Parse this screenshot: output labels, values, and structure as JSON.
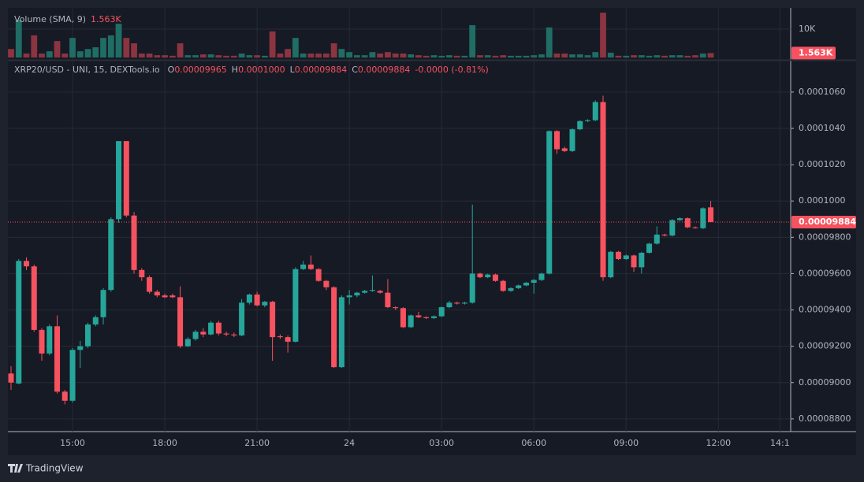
{
  "chart_data": {
    "type": "candlestick",
    "title": "XRP20/USD - UNI, 15, DEXTools.io",
    "header_fields": [
      {
        "key": "O",
        "text": "0.00009965"
      },
      {
        "key": "H",
        "text": "0.0001000"
      },
      {
        "key": "L",
        "text": "0.00009884"
      },
      {
        "key": "C",
        "text": "0.00009884"
      }
    ],
    "change": "-0.0000 (-0.81%)",
    "up_color": "#26a69a",
    "down_color": "#f7525f",
    "xlim": [
      -0.41,
      101.4
    ],
    "xticks": [
      {
        "value": 8,
        "label": "15:00"
      },
      {
        "value": 20,
        "label": "18:00"
      },
      {
        "value": 32,
        "label": "21:00"
      },
      {
        "value": 44,
        "label": "24"
      },
      {
        "value": 56,
        "label": "03:00"
      },
      {
        "value": 68,
        "label": "06:00"
      },
      {
        "value": 80,
        "label": "09:00"
      },
      {
        "value": 92,
        "label": "12:00"
      },
      {
        "value": 100,
        "label": "14:1"
      }
    ],
    "ylim": [
      8.73e-05,
      0.00010695
    ],
    "yticks": [
      {
        "value": 0.000106,
        "label": "0.0001060"
      },
      {
        "value": 0.000104,
        "label": "0.0001040"
      },
      {
        "value": 0.000102,
        "label": "0.0001020"
      },
      {
        "value": 0.0001,
        "label": "0.0001000"
      },
      {
        "value": 9.8e-05,
        "label": "0.00009800"
      },
      {
        "value": 9.6e-05,
        "label": "0.00009600"
      },
      {
        "value": 9.4e-05,
        "label": "0.00009400"
      },
      {
        "value": 9.2e-05,
        "label": "0.00009200"
      },
      {
        "value": 9e-05,
        "label": "0.00009000"
      },
      {
        "value": 8.8e-05,
        "label": "0.00008800"
      }
    ],
    "grid": true,
    "last_price_label": "0.00009884",
    "open": [
      9.05e-05,
      8.995e-05,
      9.67e-05,
      9.64e-05,
      9.29e-05,
      9.16e-05,
      9.31e-05,
      8.95e-05,
      8.9e-05,
      9.18e-05,
      9.2e-05,
      9.32e-05,
      9.36e-05,
      9.51e-05,
      9.9e-05,
      0.0001033,
      9.92e-05,
      9.62e-05,
      9.58e-05,
      9.5e-05,
      9.48e-05,
      9.48e-05,
      9.47e-05,
      9.2e-05,
      9.24e-05,
      9.28e-05,
      9.265e-05,
      9.33e-05,
      9.27e-05,
      9.265e-05,
      9.26e-05,
      9.44e-05,
      9.485e-05,
      9.425e-05,
      9.445e-05,
      9.255e-05,
      9.25e-05,
      9.225e-05,
      9.625e-05,
      9.65e-05,
      9.625e-05,
      9.56e-05,
      9.525e-05,
      9.085e-05,
      9.47e-05,
      9.48e-05,
      9.495e-05,
      9.505e-05,
      9.505e-05,
      9.495e-05,
      9.415e-05,
      9.41e-05,
      9.305e-05,
      9.37e-05,
      9.36e-05,
      9.355e-05,
      9.365e-05,
      9.415e-05,
      9.44e-05,
      9.435e-05,
      9.44e-05,
      9.6e-05,
      9.58e-05,
      9.595e-05,
      9.56e-05,
      9.505e-05,
      9.52e-05,
      9.535e-05,
      9.55e-05,
      9.565e-05,
      9.6e-05,
      0.00010385,
      0.0001029,
      0.00010275,
      0.00010395,
      0.0001044,
      0.00010445,
      0.00010545,
      9.58e-05,
      9.72e-05,
      9.68e-05,
      9.7e-05,
      9.635e-05,
      9.715e-05,
      9.765e-05,
      9.815e-05,
      9.81e-05,
      9.895e-05,
      9.905e-05,
      9.855e-05,
      9.85e-05,
      9.965e-05
    ],
    "high": [
      9.09e-05,
      9.68e-05,
      9.69e-05,
      9.65e-05,
      9.3e-05,
      9.32e-05,
      9.37e-05,
      8.96e-05,
      9.19e-05,
      9.23e-05,
      9.33e-05,
      9.37e-05,
      9.52e-05,
      9.91e-05,
      0.0001033,
      0.0001033,
      9.94e-05,
      9.63e-05,
      9.59e-05,
      9.51e-05,
      9.49e-05,
      9.49e-05,
      9.53e-05,
      9.25e-05,
      9.29e-05,
      9.3e-05,
      9.34e-05,
      9.34e-05,
      9.28e-05,
      9.275e-05,
      9.46e-05,
      9.49e-05,
      9.5e-05,
      9.45e-05,
      9.45e-05,
      9.265e-05,
      9.26e-05,
      9.635e-05,
      9.67e-05,
      9.7e-05,
      9.63e-05,
      9.565e-05,
      9.53e-05,
      9.48e-05,
      9.51e-05,
      9.5e-05,
      9.51e-05,
      9.59e-05,
      9.51e-05,
      9.57e-05,
      9.42e-05,
      9.415e-05,
      9.375e-05,
      9.39e-05,
      9.365e-05,
      9.37e-05,
      9.42e-05,
      9.45e-05,
      9.445e-05,
      9.445e-05,
      9.98e-05,
      9.605e-05,
      9.6e-05,
      9.6e-05,
      9.565e-05,
      9.525e-05,
      9.54e-05,
      9.555e-05,
      9.57e-05,
      9.605e-05,
      0.0001039,
      0.0001039,
      0.000103,
      0.000104,
      0.00010445,
      0.0001045,
      0.00010555,
      0.0001058,
      9.725e-05,
      9.725e-05,
      9.705e-05,
      9.705e-05,
      9.72e-05,
      9.77e-05,
      9.86e-05,
      9.82e-05,
      9.9e-05,
      9.91e-05,
      9.91e-05,
      9.86e-05,
      9.965e-05,
      0.0001
    ],
    "low": [
      8.96e-05,
      8.99e-05,
      9.62e-05,
      9.28e-05,
      9.12e-05,
      9.15e-05,
      8.94e-05,
      8.88e-05,
      8.89e-05,
      9.08e-05,
      9.19e-05,
      9.31e-05,
      9.32e-05,
      9.5e-05,
      9.88e-05,
      9.91e-05,
      9.6e-05,
      9.56e-05,
      9.49e-05,
      9.47e-05,
      9.465e-05,
      9.465e-05,
      9.19e-05,
      9.195e-05,
      9.23e-05,
      9.25e-05,
      9.26e-05,
      9.26e-05,
      9.255e-05,
      9.25e-05,
      9.255e-05,
      9.43e-05,
      9.42e-05,
      9.415e-05,
      9.12e-05,
      9.24e-05,
      9.165e-05,
      9.22e-05,
      9.62e-05,
      9.62e-05,
      9.555e-05,
      9.51e-05,
      9.08e-05,
      9.08e-05,
      9.43e-05,
      9.47e-05,
      9.49e-05,
      9.5e-05,
      9.49e-05,
      9.41e-05,
      9.4e-05,
      9.3e-05,
      9.3e-05,
      9.355e-05,
      9.35e-05,
      9.35e-05,
      9.36e-05,
      9.41e-05,
      9.43e-05,
      9.43e-05,
      9.435e-05,
      9.575e-05,
      9.575e-05,
      9.555e-05,
      9.5e-05,
      9.5e-05,
      9.515e-05,
      9.53e-05,
      9.49e-05,
      9.56e-05,
      9.595e-05,
      0.0001026,
      0.0001027,
      0.0001027,
      0.0001039,
      0.00010435,
      0.0001044,
      9.56e-05,
      9.575e-05,
      9.675e-05,
      9.675e-05,
      9.61e-05,
      9.6e-05,
      9.71e-05,
      9.76e-05,
      9.805e-05,
      9.805e-05,
      9.89e-05,
      9.85e-05,
      9.848e-05,
      9.845e-05,
      9.884e-05
    ],
    "close": [
      9e-05,
      9.67e-05,
      9.64e-05,
      9.29e-05,
      9.16e-05,
      9.31e-05,
      8.95e-05,
      8.9e-05,
      9.18e-05,
      9.2e-05,
      9.32e-05,
      9.36e-05,
      9.51e-05,
      9.9e-05,
      0.0001033,
      9.92e-05,
      9.62e-05,
      9.58e-05,
      9.5e-05,
      9.48e-05,
      9.47e-05,
      9.47e-05,
      9.2e-05,
      9.24e-05,
      9.28e-05,
      9.265e-05,
      9.33e-05,
      9.27e-05,
      9.265e-05,
      9.26e-05,
      9.44e-05,
      9.485e-05,
      9.425e-05,
      9.445e-05,
      9.25e-05,
      9.25e-05,
      9.225e-05,
      9.625e-05,
      9.65e-05,
      9.625e-05,
      9.56e-05,
      9.525e-05,
      9.085e-05,
      9.47e-05,
      9.48e-05,
      9.495e-05,
      9.505e-05,
      9.51e-05,
      9.495e-05,
      9.415e-05,
      9.41e-05,
      9.305e-05,
      9.37e-05,
      9.36e-05,
      9.355e-05,
      9.365e-05,
      9.415e-05,
      9.44e-05,
      9.435e-05,
      9.44e-05,
      9.6e-05,
      9.58e-05,
      9.595e-05,
      9.56e-05,
      9.505e-05,
      9.52e-05,
      9.535e-05,
      9.55e-05,
      9.565e-05,
      9.6e-05,
      0.00010385,
      0.00010285,
      0.00010275,
      0.00010395,
      0.0001044,
      0.00010445,
      0.00010545,
      9.58e-05,
      9.72e-05,
      9.68e-05,
      9.7e-05,
      9.635e-05,
      9.715e-05,
      9.765e-05,
      9.815e-05,
      9.81e-05,
      9.895e-05,
      9.905e-05,
      9.855e-05,
      9.852e-05,
      9.96e-05,
      9.884e-05
    ],
    "volume": {
      "name": "Volume (SMA, 9)",
      "up_color": "#1f6d64",
      "down_color": "#8c3440",
      "values": [
        3000,
        13300,
        1400,
        7800,
        1400,
        2200,
        5800,
        1400,
        6900,
        2200,
        3000,
        3600,
        6900,
        7800,
        11900,
        6900,
        5000,
        1400,
        1400,
        800,
        800,
        600,
        5000,
        800,
        800,
        1100,
        1100,
        800,
        600,
        600,
        1400,
        800,
        800,
        600,
        9200,
        1400,
        3000,
        6900,
        1400,
        1400,
        1400,
        1400,
        5000,
        3000,
        1900,
        800,
        800,
        1900,
        1400,
        1900,
        1400,
        1400,
        1100,
        800,
        600,
        800,
        600,
        800,
        600,
        600,
        11400,
        800,
        800,
        600,
        800,
        600,
        600,
        600,
        800,
        1100,
        10600,
        1400,
        1400,
        1100,
        1100,
        800,
        1900,
        15800,
        1700,
        600,
        600,
        800,
        800,
        600,
        800,
        600,
        800,
        800,
        600,
        800,
        1400,
        1563
      ],
      "last_value_label": "1.563K",
      "ylim": [
        0,
        17500
      ],
      "yticks": [
        {
          "value": 10000,
          "label": "10K"
        }
      ]
    },
    "branding": "TradingView"
  }
}
